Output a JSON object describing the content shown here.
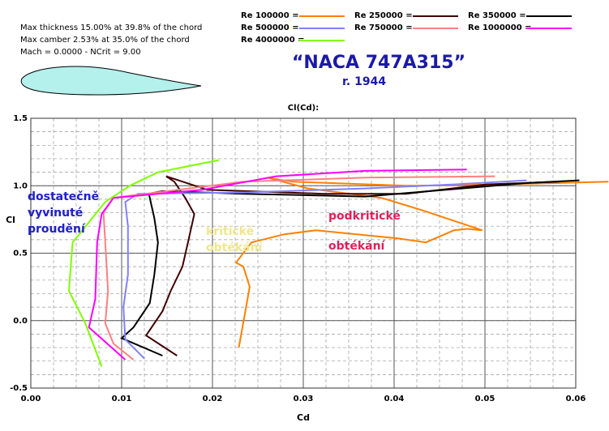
{
  "chart_data": {
    "type": "line",
    "title": "“NACA 747A315”",
    "subtitle": "r. 1944",
    "plot_title": "Cl(Cd):",
    "x_label": "Cd",
    "y_label": "Cl",
    "info": [
      "Max thickness 15.00% at 39.8% of the chord",
      "Max camber 2.53% at 35.0% of the chord",
      "Mach = 0.0000 - NCrit = 9.00"
    ],
    "xlim": [
      0,
      0.06
    ],
    "ylim": [
      -0.5,
      1.5
    ],
    "xticks": [
      {
        "value": 0,
        "label": "0.00"
      },
      {
        "value": 0.01,
        "label": "0.01"
      },
      {
        "value": 0.02,
        "label": "0.02"
      },
      {
        "value": 0.03,
        "label": "0.03"
      },
      {
        "value": 0.04,
        "label": "0.04"
      },
      {
        "value": 0.05,
        "label": "0.05"
      },
      {
        "value": 0.06,
        "label": "0.06"
      }
    ],
    "yticks": [
      -0.5,
      {
        "value": 0,
        "label": "0.0"
      },
      0.5,
      {
        "value": 1,
        "label": "1.0"
      },
      1.5
    ],
    "grid": true,
    "minor_grid": {
      "x_step": 0.0025,
      "y_step": 0.1
    },
    "series": [
      {
        "name": "Re 100000 =",
        "color": "#ff8000",
        "x": [
          0.0229,
          0.0241,
          0.0234,
          0.0226,
          0.0243,
          0.0279,
          0.0314,
          0.0359,
          0.0404,
          0.0435,
          0.0466,
          0.048,
          0.0497,
          0.043,
          0.0386,
          0.0305,
          0.0261,
          0.0288,
          0.0413,
          0.052,
          0.0636
        ],
        "y": [
          -0.2,
          0.25,
          0.4,
          0.43,
          0.58,
          0.64,
          0.67,
          0.64,
          0.61,
          0.58,
          0.67,
          0.68,
          0.67,
          0.82,
          0.91,
          0.98,
          1.06,
          1.03,
          1.0,
          1.01,
          1.03
        ]
      },
      {
        "name": "Re 250000 =",
        "color": "#400000",
        "x": [
          0.0161,
          0.0127,
          0.0145,
          0.0154,
          0.0167,
          0.0173,
          0.018,
          0.017,
          0.0158,
          0.0149,
          0.0194,
          0.0323,
          0.0413,
          0.0502,
          0.0582
        ],
        "y": [
          -0.26,
          -0.11,
          0.07,
          0.22,
          0.4,
          0.58,
          0.79,
          0.91,
          1.03,
          1.07,
          0.97,
          0.94,
          0.94,
          1.01,
          1.03
        ]
      },
      {
        "name": "Re 350000 =",
        "color": "#000000",
        "x": [
          0.0145,
          0.01,
          0.0113,
          0.0131,
          0.0136,
          0.014,
          0.0136,
          0.013,
          0.0145,
          0.0234,
          0.0368,
          0.0457,
          0.0546,
          0.0604
        ],
        "y": [
          -0.26,
          -0.13,
          -0.05,
          0.13,
          0.34,
          0.58,
          0.76,
          0.94,
          0.96,
          0.94,
          0.92,
          0.97,
          1.02,
          1.04
        ]
      },
      {
        "name": "Re 500000 =",
        "color": "#8080ff",
        "x": [
          0.0125,
          0.0104,
          0.0102,
          0.0107,
          0.0107,
          0.0104,
          0.0118,
          0.0234,
          0.0368,
          0.0466,
          0.0546
        ],
        "y": [
          -0.28,
          -0.14,
          0.1,
          0.34,
          0.7,
          0.88,
          0.94,
          0.95,
          0.98,
          1.01,
          1.04
        ]
      },
      {
        "name": "Re 750000 =",
        "color": "#ff8080",
        "x": [
          0.0113,
          0.0091,
          0.0082,
          0.0085,
          0.0082,
          0.008,
          0.0091,
          0.0234,
          0.0368,
          0.0511
        ],
        "y": [
          -0.29,
          -0.17,
          -0.02,
          0.22,
          0.58,
          0.8,
          0.91,
          1.03,
          1.06,
          1.07
        ]
      },
      {
        "name": "Re 1000000 =",
        "color": "#ff00ff",
        "x": [
          0.0104,
          0.0064,
          0.0071,
          0.0073,
          0.0078,
          0.0091,
          0.0189,
          0.027,
          0.0368,
          0.048
        ],
        "y": [
          -0.29,
          -0.05,
          0.16,
          0.58,
          0.79,
          0.91,
          0.97,
          1.07,
          1.11,
          1.12
        ]
      },
      {
        "name": "Re 4000000 =",
        "color": "#80ff00",
        "x": [
          0.0078,
          0.006,
          0.0042,
          0.0046,
          0.0064,
          0.0082,
          0.0109,
          0.014,
          0.0207
        ],
        "y": [
          -0.34,
          -0.02,
          0.22,
          0.58,
          0.73,
          0.88,
          1.0,
          1.1,
          1.19
        ]
      }
    ],
    "annotations": [
      {
        "lines": [
          "dostatečně",
          "vyvinuté",
          "proudění"
        ],
        "color": "#2020c8"
      },
      {
        "lines": [
          "kritické",
          "obtékání"
        ],
        "color": "#f0e68c"
      },
      {
        "lines": [
          "podkritické",
          "obtékání"
        ],
        "color": "#e0205a"
      }
    ]
  }
}
